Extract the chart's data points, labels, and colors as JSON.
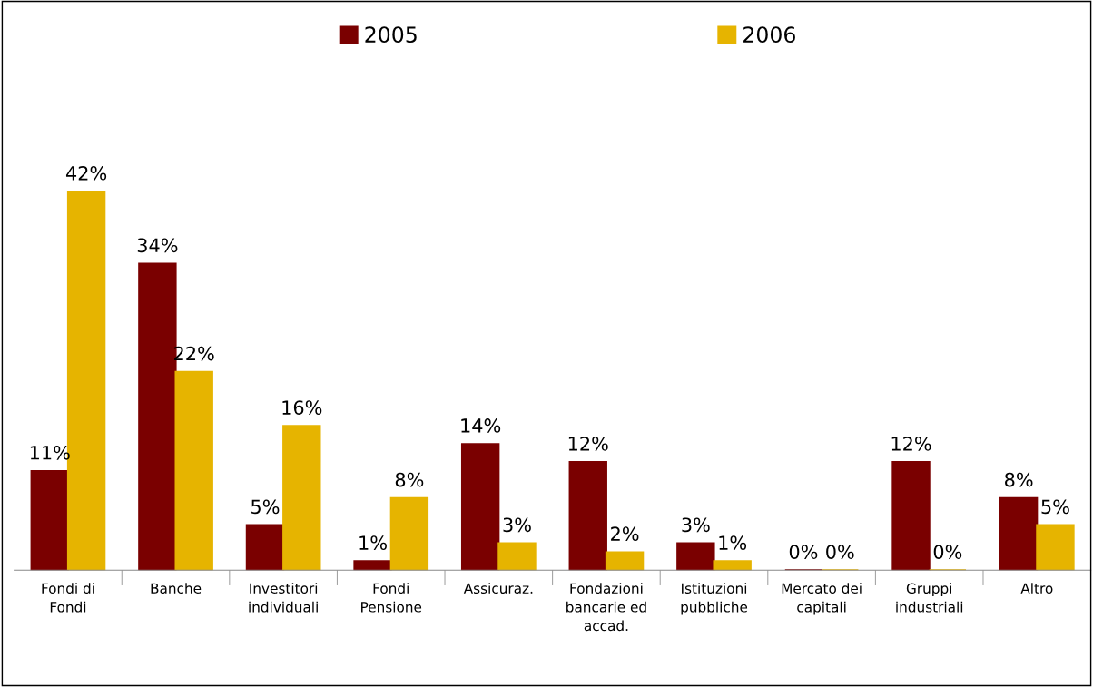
{
  "chart_data": {
    "type": "bar",
    "categories": [
      "Fondi di\nFondi",
      "Banche",
      "Investitori\nindividuali",
      "Fondi\nPensione",
      "Assicuraz.",
      "Fondazioni\nbancarie ed\naccad.",
      "Istituzioni\npubbliche",
      "Mercato dei\ncapitali",
      "Gruppi\nindustriali",
      "Altro"
    ],
    "series": [
      {
        "name": "2005",
        "color": "#7a0000",
        "values": [
          11,
          34,
          5,
          1,
          14,
          12,
          3,
          0,
          12,
          8
        ],
        "value_labels": [
          "11%",
          "34%",
          "5%",
          "1%",
          "14%",
          "12%",
          "3%",
          "0%",
          "12%",
          "8%"
        ]
      },
      {
        "name": "2006",
        "color": "#e6b400",
        "values": [
          42,
          22,
          16,
          8,
          3,
          2,
          1,
          0,
          0,
          5
        ],
        "value_labels": [
          "42%",
          "22%",
          "16%",
          "8%",
          "3%",
          "2%",
          "1%",
          "0%",
          "0%",
          "5%"
        ]
      }
    ],
    "legend": "top",
    "grid": false
  }
}
